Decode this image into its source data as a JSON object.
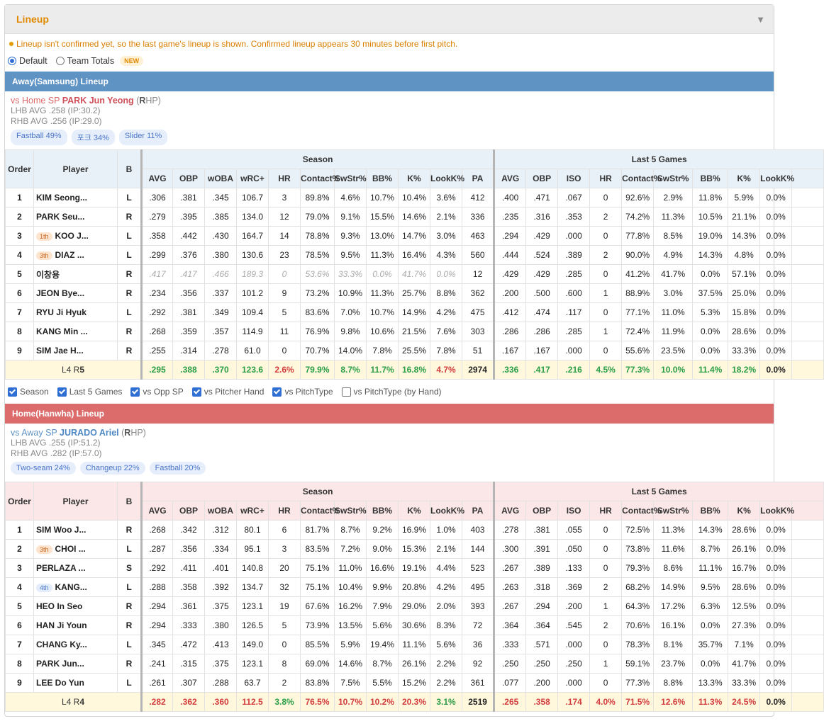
{
  "panel": {
    "title": "Lineup",
    "notice": "Lineup isn't confirmed yet, so the last game's lineup is shown. Confirmed lineup appears 30 minutes before first pitch.",
    "radios": [
      {
        "label": "Default",
        "checked": true
      },
      {
        "label": "Team Totals",
        "checked": false
      }
    ],
    "new_badge": "NEW"
  },
  "headers": {
    "order": "Order",
    "player": "Player",
    "b": "B",
    "season": "Season",
    "last5": "Last 5 Games",
    "season_cols": [
      "AVG",
      "OBP",
      "wOBA",
      "wRC+",
      "HR",
      "Contact%",
      "SwStr%",
      "BB%",
      "K%",
      "LookK%",
      "PA"
    ],
    "last5_cols": [
      "AVG",
      "OBP",
      "ISO",
      "HR",
      "Contact%",
      "SwStr%",
      "BB%",
      "K%",
      "LookK%"
    ]
  },
  "checkboxes": [
    {
      "label": "Season",
      "checked": true
    },
    {
      "label": "Last 5 Games",
      "checked": true
    },
    {
      "label": "vs Opp SP",
      "checked": true
    },
    {
      "label": "vs Pitcher Hand",
      "checked": true
    },
    {
      "label": "vs PitchType",
      "checked": true
    },
    {
      "label": "vs PitchType (by Hand)",
      "checked": false
    }
  ],
  "colors": {
    "away_bar": "#5f93c4",
    "home_bar": "#dc6c6c",
    "accent": "#e08a00",
    "good": "#2a9d46",
    "bad": "#d23c3c"
  },
  "away": {
    "title": "Away(Samsung) Lineup",
    "sp_prefix": "vs Home SP",
    "sp_name": "PARK Jun Yeong",
    "sp_hand_pre": "(",
    "sp_hand": "R",
    "sp_hand_post": "HP)",
    "lhb": "LHB AVG .258 (IP:30.2)",
    "rhb": "RHB AVG .256 (IP:29.0)",
    "pitches": [
      "Fastball 49%",
      "포크 34%",
      "Slider 11%"
    ],
    "rows": [
      {
        "order": "1",
        "badge": "",
        "badge_style": "",
        "player": "KIM Seong...",
        "b": "L",
        "dim": false,
        "season": [
          ".306",
          ".381",
          ".345",
          "106.7",
          "3",
          "89.8%",
          "4.6%",
          "10.7%",
          "10.4%",
          "3.6%",
          "412"
        ],
        "last5": [
          ".400",
          ".471",
          ".067",
          "0",
          "92.6%",
          "2.9%",
          "11.8%",
          "5.9%",
          "0.0%"
        ]
      },
      {
        "order": "2",
        "badge": "",
        "badge_style": "",
        "player": "PARK Seu...",
        "b": "R",
        "dim": false,
        "season": [
          ".279",
          ".395",
          ".385",
          "134.0",
          "12",
          "79.0%",
          "9.1%",
          "15.5%",
          "14.6%",
          "2.1%",
          "336"
        ],
        "last5": [
          ".235",
          ".316",
          ".353",
          "2",
          "74.2%",
          "11.3%",
          "10.5%",
          "21.1%",
          "0.0%"
        ]
      },
      {
        "order": "3",
        "badge": "1th",
        "badge_style": "orange",
        "player": "KOO J...",
        "b": "L",
        "dim": false,
        "season": [
          ".358",
          ".442",
          ".430",
          "164.7",
          "14",
          "78.8%",
          "9.3%",
          "13.0%",
          "14.7%",
          "3.0%",
          "463"
        ],
        "last5": [
          ".294",
          ".429",
          ".000",
          "0",
          "77.8%",
          "8.5%",
          "19.0%",
          "14.3%",
          "0.0%"
        ]
      },
      {
        "order": "4",
        "badge": "3th",
        "badge_style": "orange",
        "player": "DIAZ ...",
        "b": "L",
        "dim": false,
        "season": [
          ".299",
          ".376",
          ".380",
          "130.6",
          "23",
          "78.5%",
          "9.5%",
          "11.3%",
          "16.4%",
          "4.3%",
          "560"
        ],
        "last5": [
          ".444",
          ".524",
          ".389",
          "2",
          "90.0%",
          "4.9%",
          "14.3%",
          "4.8%",
          "0.0%"
        ]
      },
      {
        "order": "5",
        "badge": "",
        "badge_style": "",
        "player": "이창용",
        "b": "R",
        "dim": true,
        "season": [
          ".417",
          ".417",
          ".466",
          "189.3",
          "0",
          "53.6%",
          "33.3%",
          "0.0%",
          "41.7%",
          "0.0%",
          "12"
        ],
        "last5": [
          ".429",
          ".429",
          ".285",
          "0",
          "41.2%",
          "41.7%",
          "0.0%",
          "57.1%",
          "0.0%"
        ]
      },
      {
        "order": "6",
        "badge": "",
        "badge_style": "",
        "player": "JEON Bye...",
        "b": "R",
        "dim": false,
        "season": [
          ".234",
          ".356",
          ".337",
          "101.2",
          "9",
          "73.2%",
          "10.9%",
          "11.3%",
          "25.7%",
          "8.8%",
          "362"
        ],
        "last5": [
          ".200",
          ".500",
          ".600",
          "1",
          "88.9%",
          "3.0%",
          "37.5%",
          "25.0%",
          "0.0%"
        ]
      },
      {
        "order": "7",
        "badge": "",
        "badge_style": "",
        "player": "RYU Ji Hyuk",
        "b": "L",
        "dim": false,
        "season": [
          ".292",
          ".381",
          ".349",
          "109.4",
          "5",
          "83.6%",
          "7.0%",
          "10.7%",
          "14.9%",
          "4.2%",
          "475"
        ],
        "last5": [
          ".412",
          ".474",
          ".117",
          "0",
          "77.1%",
          "11.0%",
          "5.3%",
          "15.8%",
          "0.0%"
        ]
      },
      {
        "order": "8",
        "badge": "",
        "badge_style": "",
        "player": "KANG Min ...",
        "b": "R",
        "dim": false,
        "season": [
          ".268",
          ".359",
          ".357",
          "114.9",
          "11",
          "76.9%",
          "9.8%",
          "10.6%",
          "21.5%",
          "7.6%",
          "303"
        ],
        "last5": [
          ".286",
          ".286",
          ".285",
          "1",
          "72.4%",
          "11.9%",
          "0.0%",
          "28.6%",
          "0.0%"
        ]
      },
      {
        "order": "9",
        "badge": "",
        "badge_style": "",
        "player": "SIM Jae H...",
        "b": "R",
        "dim": false,
        "season": [
          ".255",
          ".314",
          ".278",
          "61.0",
          "0",
          "70.7%",
          "14.0%",
          "7.8%",
          "25.5%",
          "7.8%",
          "51"
        ],
        "last5": [
          ".167",
          ".167",
          ".000",
          "0",
          "55.6%",
          "23.5%",
          "0.0%",
          "33.3%",
          "0.0%"
        ]
      }
    ],
    "total": {
      "label_pre": "L4 R",
      "label_bold": "5",
      "season": [
        ".295",
        ".388",
        ".370",
        "123.6",
        "2.6%",
        "79.9%",
        "8.7%",
        "11.7%",
        "16.8%",
        "4.7%",
        "2974"
      ],
      "season_colors": [
        "g",
        "g",
        "g",
        "g",
        "r",
        "g",
        "g",
        "g",
        "g",
        "r",
        ""
      ],
      "last5": [
        ".336",
        ".417",
        ".216",
        "4.5%",
        "77.3%",
        "10.0%",
        "11.4%",
        "18.2%",
        "0.0%"
      ],
      "last5_colors": [
        "g",
        "g",
        "g",
        "g",
        "g",
        "g",
        "g",
        "g",
        ""
      ]
    }
  },
  "home": {
    "title": "Home(Hanwha) Lineup",
    "sp_prefix": "vs Away SP",
    "sp_name": "JURADO Ariel",
    "sp_hand_pre": "(",
    "sp_hand": "R",
    "sp_hand_post": "HP)",
    "lhb": "LHB AVG .255 (IP:51.2)",
    "rhb": "RHB AVG .282 (IP:57.0)",
    "pitches": [
      "Two-seam 24%",
      "Changeup 22%",
      "Fastball 20%"
    ],
    "rows": [
      {
        "order": "1",
        "badge": "",
        "badge_style": "",
        "player": "SIM Woo J...",
        "b": "R",
        "dim": false,
        "season": [
          ".268",
          ".342",
          ".312",
          "80.1",
          "6",
          "81.7%",
          "8.7%",
          "9.2%",
          "16.9%",
          "1.0%",
          "403"
        ],
        "last5": [
          ".278",
          ".381",
          ".055",
          "0",
          "72.5%",
          "11.3%",
          "14.3%",
          "28.6%",
          "0.0%"
        ]
      },
      {
        "order": "2",
        "badge": "3th",
        "badge_style": "orange",
        "player": "CHOI ...",
        "b": "L",
        "dim": false,
        "season": [
          ".287",
          ".356",
          ".334",
          "95.1",
          "3",
          "83.5%",
          "7.2%",
          "9.0%",
          "15.3%",
          "2.1%",
          "144"
        ],
        "last5": [
          ".300",
          ".391",
          ".050",
          "0",
          "73.8%",
          "11.6%",
          "8.7%",
          "26.1%",
          "0.0%"
        ]
      },
      {
        "order": "3",
        "badge": "",
        "badge_style": "",
        "player": "PERLAZA ...",
        "b": "S",
        "dim": false,
        "season": [
          ".292",
          ".411",
          ".401",
          "140.8",
          "20",
          "75.1%",
          "11.0%",
          "16.6%",
          "19.1%",
          "4.4%",
          "523"
        ],
        "last5": [
          ".267",
          ".389",
          ".133",
          "0",
          "79.3%",
          "8.6%",
          "11.1%",
          "16.7%",
          "0.0%"
        ]
      },
      {
        "order": "4",
        "badge": "4th",
        "badge_style": "blue",
        "player": "KANG...",
        "b": "L",
        "dim": false,
        "season": [
          ".288",
          ".358",
          ".392",
          "134.7",
          "32",
          "75.1%",
          "10.4%",
          "9.9%",
          "20.8%",
          "4.2%",
          "495"
        ],
        "last5": [
          ".263",
          ".318",
          ".369",
          "2",
          "68.2%",
          "14.9%",
          "9.5%",
          "28.6%",
          "0.0%"
        ]
      },
      {
        "order": "5",
        "badge": "",
        "badge_style": "",
        "player": "HEO In Seo",
        "b": "R",
        "dim": false,
        "season": [
          ".294",
          ".361",
          ".375",
          "123.1",
          "19",
          "67.6%",
          "16.2%",
          "7.9%",
          "29.0%",
          "2.0%",
          "393"
        ],
        "last5": [
          ".267",
          ".294",
          ".200",
          "1",
          "64.3%",
          "17.2%",
          "6.3%",
          "12.5%",
          "0.0%"
        ]
      },
      {
        "order": "6",
        "badge": "",
        "badge_style": "",
        "player": "HAN Ji Youn",
        "b": "R",
        "dim": false,
        "season": [
          ".294",
          ".333",
          ".380",
          "126.5",
          "5",
          "73.9%",
          "13.5%",
          "5.6%",
          "30.6%",
          "8.3%",
          "72"
        ],
        "last5": [
          ".364",
          ".364",
          ".545",
          "2",
          "70.6%",
          "16.1%",
          "0.0%",
          "27.3%",
          "0.0%"
        ]
      },
      {
        "order": "7",
        "badge": "",
        "badge_style": "",
        "player": "CHANG Ky...",
        "b": "L",
        "dim": false,
        "season": [
          ".345",
          ".472",
          ".413",
          "149.0",
          "0",
          "85.5%",
          "5.9%",
          "19.4%",
          "11.1%",
          "5.6%",
          "36"
        ],
        "last5": [
          ".333",
          ".571",
          ".000",
          "0",
          "78.3%",
          "8.1%",
          "35.7%",
          "7.1%",
          "0.0%"
        ]
      },
      {
        "order": "8",
        "badge": "",
        "badge_style": "",
        "player": "PARK Jun...",
        "b": "R",
        "dim": false,
        "season": [
          ".241",
          ".315",
          ".375",
          "123.1",
          "8",
          "69.0%",
          "14.6%",
          "8.7%",
          "26.1%",
          "2.2%",
          "92"
        ],
        "last5": [
          ".250",
          ".250",
          ".250",
          "1",
          "59.1%",
          "23.7%",
          "0.0%",
          "41.7%",
          "0.0%"
        ]
      },
      {
        "order": "9",
        "badge": "",
        "badge_style": "",
        "player": "LEE Do Yun",
        "b": "L",
        "dim": false,
        "season": [
          ".261",
          ".307",
          ".288",
          "63.7",
          "2",
          "83.8%",
          "7.5%",
          "5.5%",
          "15.2%",
          "2.2%",
          "361"
        ],
        "last5": [
          ".077",
          ".200",
          ".000",
          "0",
          "77.3%",
          "8.8%",
          "13.3%",
          "33.3%",
          "0.0%"
        ]
      }
    ],
    "total": {
      "label_pre": "L4 R",
      "label_bold": "4",
      "season": [
        ".282",
        ".362",
        ".360",
        "112.5",
        "3.8%",
        "76.5%",
        "10.7%",
        "10.2%",
        "20.3%",
        "3.1%",
        "2519"
      ],
      "season_colors": [
        "r",
        "r",
        "r",
        "r",
        "g",
        "r",
        "r",
        "r",
        "r",
        "g",
        ""
      ],
      "last5": [
        ".265",
        ".358",
        ".174",
        "4.0%",
        "71.5%",
        "12.6%",
        "11.3%",
        "24.5%",
        "0.0%"
      ],
      "last5_colors": [
        "r",
        "r",
        "r",
        "r",
        "r",
        "r",
        "r",
        "r",
        ""
      ]
    }
  }
}
